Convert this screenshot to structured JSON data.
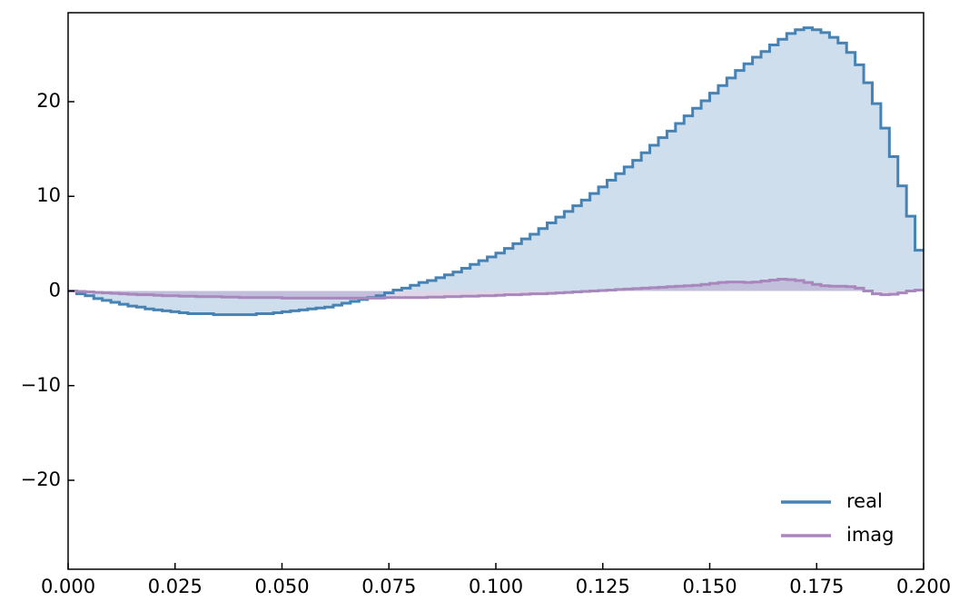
{
  "chart_data": {
    "type": "step",
    "x": [
      0,
      0.002,
      0.004,
      0.006,
      0.008,
      0.01,
      0.012,
      0.014,
      0.016,
      0.018,
      0.02,
      0.022,
      0.024,
      0.026,
      0.028,
      0.03,
      0.032,
      0.034,
      0.036,
      0.038,
      0.04,
      0.042,
      0.044,
      0.046,
      0.048,
      0.05,
      0.052,
      0.054,
      0.056,
      0.058,
      0.06,
      0.062,
      0.064,
      0.066,
      0.068,
      0.07,
      0.072,
      0.074,
      0.076,
      0.078,
      0.08,
      0.082,
      0.084,
      0.086,
      0.088,
      0.09,
      0.092,
      0.094,
      0.096,
      0.098,
      0.1,
      0.102,
      0.104,
      0.106,
      0.108,
      0.11,
      0.112,
      0.114,
      0.116,
      0.118,
      0.12,
      0.122,
      0.124,
      0.126,
      0.128,
      0.13,
      0.132,
      0.134,
      0.136,
      0.138,
      0.14,
      0.142,
      0.144,
      0.146,
      0.148,
      0.15,
      0.152,
      0.154,
      0.156,
      0.158,
      0.16,
      0.162,
      0.164,
      0.166,
      0.168,
      0.17,
      0.172,
      0.174,
      0.176,
      0.178,
      0.18,
      0.182,
      0.184,
      0.186,
      0.188,
      0.19,
      0.192,
      0.194,
      0.196,
      0.198
    ],
    "series": [
      {
        "name": "real",
        "color": "#4682b4",
        "fill": "#cfdeed",
        "values": [
          0,
          -0.3,
          -0.5,
          -0.8,
          -1.0,
          -1.2,
          -1.4,
          -1.6,
          -1.7,
          -1.9,
          -2.0,
          -2.1,
          -2.2,
          -2.3,
          -2.4,
          -2.4,
          -2.4,
          -2.5,
          -2.5,
          -2.5,
          -2.5,
          -2.5,
          -2.4,
          -2.4,
          -2.3,
          -2.2,
          -2.1,
          -2.0,
          -1.9,
          -1.8,
          -1.7,
          -1.5,
          -1.3,
          -1.1,
          -0.9,
          -0.7,
          -0.5,
          -0.2,
          0.1,
          0.3,
          0.6,
          0.9,
          1.1,
          1.4,
          1.7,
          2.0,
          2.4,
          2.8,
          3.2,
          3.6,
          4.0,
          4.5,
          5.0,
          5.5,
          6.0,
          6.6,
          7.2,
          7.8,
          8.4,
          9.0,
          9.6,
          10.3,
          11.0,
          11.7,
          12.4,
          13.1,
          13.8,
          14.6,
          15.4,
          16.2,
          16.9,
          17.7,
          18.5,
          19.3,
          20.1,
          20.9,
          21.7,
          22.5,
          23.3,
          24.0,
          24.7,
          25.3,
          26.0,
          26.6,
          27.2,
          27.6,
          27.8,
          27.6,
          27.3,
          26.8,
          26.2,
          25.2,
          23.9,
          22.0,
          19.8,
          17.2,
          14.2,
          11.1,
          7.9,
          4.3
        ]
      },
      {
        "name": "imag",
        "color": "#a887bd",
        "fill": "rgba(168,135,189,0.35)",
        "values": [
          0,
          -0.05,
          -0.1,
          -0.15,
          -0.2,
          -0.25,
          -0.3,
          -0.35,
          -0.4,
          -0.4,
          -0.45,
          -0.5,
          -0.5,
          -0.55,
          -0.55,
          -0.6,
          -0.6,
          -0.6,
          -0.65,
          -0.65,
          -0.7,
          -0.7,
          -0.7,
          -0.7,
          -0.7,
          -0.75,
          -0.75,
          -0.75,
          -0.75,
          -0.75,
          -0.75,
          -0.75,
          -0.75,
          -0.75,
          -0.75,
          -0.75,
          -0.75,
          -0.7,
          -0.7,
          -0.7,
          -0.7,
          -0.7,
          -0.65,
          -0.65,
          -0.6,
          -0.6,
          -0.55,
          -0.55,
          -0.5,
          -0.5,
          -0.45,
          -0.4,
          -0.4,
          -0.35,
          -0.3,
          -0.3,
          -0.25,
          -0.2,
          -0.15,
          -0.1,
          -0.05,
          0,
          0.05,
          0.1,
          0.15,
          0.2,
          0.25,
          0.3,
          0.35,
          0.4,
          0.45,
          0.5,
          0.55,
          0.6,
          0.7,
          0.8,
          0.9,
          0.95,
          0.95,
          0.9,
          0.95,
          1.05,
          1.15,
          1.25,
          1.2,
          1.1,
          0.9,
          0.7,
          0.55,
          0.5,
          0.5,
          0.45,
          0.3,
          0.0,
          -0.3,
          -0.4,
          -0.35,
          -0.2,
          0,
          0.1
        ]
      }
    ],
    "xlim": [
      0,
      0.2
    ],
    "xticks": [
      {
        "value": 0,
        "label": "0.000"
      },
      {
        "value": 0.025,
        "label": "0.025"
      },
      {
        "value": 0.05,
        "label": "0.050"
      },
      {
        "value": 0.075,
        "label": "0.075"
      },
      {
        "value": 0.1,
        "label": "0.100"
      },
      {
        "value": 0.125,
        "label": "0.125"
      },
      {
        "value": 0.15,
        "label": "0.150"
      },
      {
        "value": 0.175,
        "label": "0.175"
      },
      {
        "value": 0.2,
        "label": "0.200"
      }
    ],
    "ylim": [
      -29.4,
      29.4
    ],
    "yticks": [
      {
        "value": -20,
        "label": "−20"
      },
      {
        "value": -10,
        "label": "−10"
      },
      0,
      10,
      20
    ],
    "grid": false,
    "legend": "lower right"
  }
}
